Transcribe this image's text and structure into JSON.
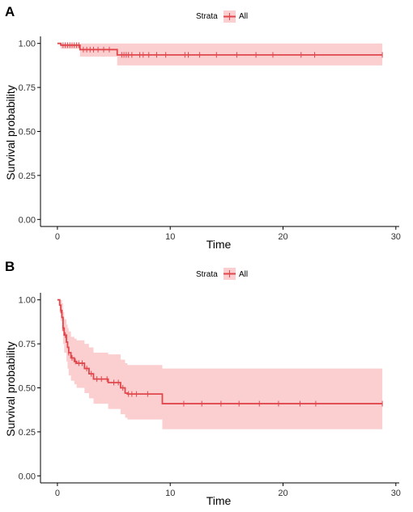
{
  "colors": {
    "line": "#e0474c",
    "band": "#fbcfd0",
    "axis": "#000000"
  },
  "chart_data": [
    {
      "type": "line",
      "panel_label": "A",
      "legend": {
        "title": "Strata",
        "entries": [
          "All"
        ]
      },
      "xlabel": "Time",
      "ylabel": "Survival probability",
      "xlim": [
        -1.5,
        30.3
      ],
      "ylim": [
        -0.04,
        1.04
      ],
      "xticks": [
        0,
        10,
        20,
        30
      ],
      "yticks": [
        0.0,
        0.25,
        0.5,
        0.75,
        1.0
      ],
      "yticklabels": [
        "0.00",
        "0.25",
        "0.50",
        "0.75",
        "1.00"
      ],
      "grid": false,
      "series": [
        {
          "name": "All",
          "step_points": [
            [
              0,
              1.0
            ],
            [
              0.3,
              0.99
            ],
            [
              2.0,
              0.965
            ],
            [
              5.3,
              0.935
            ],
            [
              28.8,
              0.935
            ]
          ],
          "ci_lower": [
            [
              0,
              1.0
            ],
            [
              0.3,
              0.97
            ],
            [
              2.0,
              0.925
            ],
            [
              5.3,
              0.875
            ],
            [
              28.8,
              0.875
            ]
          ],
          "ci_upper": [
            [
              0,
              1.0
            ],
            [
              0.3,
              1.0
            ],
            [
              2.0,
              1.0
            ],
            [
              5.3,
              1.0
            ],
            [
              28.8,
              1.0
            ]
          ],
          "censor_times": [
            0.5,
            0.7,
            0.9,
            1.1,
            1.3,
            1.5,
            1.7,
            1.9,
            2.3,
            2.6,
            2.9,
            3.2,
            3.6,
            4.1,
            4.6,
            5.7,
            5.9,
            6.1,
            6.3,
            6.6,
            7.3,
            7.6,
            8.1,
            8.8,
            9.6,
            11.3,
            11.6,
            12.6,
            14.1,
            15.9,
            17.6,
            19.1,
            21.6,
            22.8,
            28.8
          ]
        }
      ]
    },
    {
      "type": "line",
      "panel_label": "B",
      "legend": {
        "title": "Strata",
        "entries": [
          "All"
        ]
      },
      "xlabel": "Time",
      "ylabel": "Survival probability",
      "xlim": [
        -1.5,
        30.3
      ],
      "ylim": [
        -0.04,
        1.04
      ],
      "xticks": [
        0,
        10,
        20,
        30
      ],
      "yticks": [
        0.0,
        0.25,
        0.5,
        0.75,
        1.0
      ],
      "yticklabels": [
        "0.00",
        "0.25",
        "0.50",
        "0.75",
        "1.00"
      ],
      "grid": false,
      "series": [
        {
          "name": "All",
          "step_points": [
            [
              0,
              1.0
            ],
            [
              0.2,
              0.97
            ],
            [
              0.3,
              0.94
            ],
            [
              0.4,
              0.9
            ],
            [
              0.5,
              0.84
            ],
            [
              0.6,
              0.8
            ],
            [
              0.8,
              0.76
            ],
            [
              0.9,
              0.73
            ],
            [
              1.0,
              0.7
            ],
            [
              1.2,
              0.67
            ],
            [
              1.5,
              0.65
            ],
            [
              1.7,
              0.64
            ],
            [
              2.4,
              0.61
            ],
            [
              2.8,
              0.58
            ],
            [
              3.2,
              0.55
            ],
            [
              4.5,
              0.53
            ],
            [
              5.6,
              0.5
            ],
            [
              6.0,
              0.47
            ],
            [
              6.2,
              0.465
            ],
            [
              9.3,
              0.41
            ],
            [
              28.8,
              0.41
            ]
          ],
          "ci_lower": [
            [
              0,
              1.0
            ],
            [
              0.2,
              0.93
            ],
            [
              0.3,
              0.88
            ],
            [
              0.4,
              0.82
            ],
            [
              0.5,
              0.75
            ],
            [
              0.6,
              0.7
            ],
            [
              0.8,
              0.65
            ],
            [
              0.9,
              0.61
            ],
            [
              1.0,
              0.57
            ],
            [
              1.2,
              0.54
            ],
            [
              1.5,
              0.52
            ],
            [
              1.7,
              0.5
            ],
            [
              2.4,
              0.47
            ],
            [
              2.8,
              0.44
            ],
            [
              3.2,
              0.41
            ],
            [
              4.5,
              0.38
            ],
            [
              5.6,
              0.35
            ],
            [
              6.0,
              0.33
            ],
            [
              6.2,
              0.32
            ],
            [
              9.3,
              0.265
            ],
            [
              28.8,
              0.265
            ]
          ],
          "ci_upper": [
            [
              0,
              1.0
            ],
            [
              0.2,
              1.0
            ],
            [
              0.3,
              1.0
            ],
            [
              0.4,
              0.98
            ],
            [
              0.5,
              0.93
            ],
            [
              0.6,
              0.89
            ],
            [
              0.8,
              0.86
            ],
            [
              0.9,
              0.84
            ],
            [
              1.0,
              0.82
            ],
            [
              1.2,
              0.79
            ],
            [
              1.5,
              0.78
            ],
            [
              1.7,
              0.77
            ],
            [
              2.4,
              0.75
            ],
            [
              2.8,
              0.73
            ],
            [
              3.2,
              0.7
            ],
            [
              4.5,
              0.69
            ],
            [
              5.6,
              0.66
            ],
            [
              6.0,
              0.64
            ],
            [
              6.2,
              0.63
            ],
            [
              9.3,
              0.61
            ],
            [
              28.8,
              0.61
            ]
          ],
          "censor_times": [
            0.3,
            0.5,
            0.7,
            1.0,
            1.3,
            1.6,
            1.9,
            2.2,
            2.6,
            3.0,
            3.5,
            3.9,
            4.4,
            5.0,
            5.4,
            5.8,
            6.3,
            6.6,
            7.0,
            8.0,
            11.2,
            12.8,
            14.5,
            16.1,
            17.9,
            19.6,
            21.5,
            22.9,
            28.8
          ]
        }
      ]
    }
  ]
}
